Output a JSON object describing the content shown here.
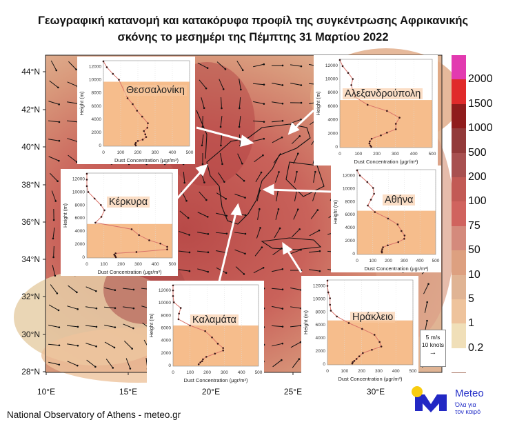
{
  "title": {
    "line1": "Γεωγραφική κατανομή και κατακόρυφα προφίλ της συγκέντρωσης Αφρικανικής",
    "line2": "σκόνης το μεσημέρι της Πέμπτης 31 Μαρτίου 2022"
  },
  "map": {
    "lat_ticks": [
      "44°N",
      "42°N",
      "40°N",
      "38°N",
      "36°N",
      "34°N",
      "32°N",
      "30°N",
      "28°N"
    ],
    "lon_ticks": [
      "10°E",
      "15°E",
      "20°E",
      "25°E",
      "30°E"
    ],
    "wind_legend": {
      "speed": "5 m/s",
      "knots": "10 knots"
    }
  },
  "colorbar": {
    "colors": [
      "#e23ab0",
      "#e02a2a",
      "#8f1c1c",
      "#933a3a",
      "#a85050",
      "#c25a55",
      "#d0635e",
      "#d48a7c",
      "#dda080",
      "#e0b494",
      "#eec39c",
      "#f0dfb8",
      "#ffffff"
    ],
    "labels": [
      "2000",
      "1500",
      "1000",
      "500",
      "200",
      "100",
      "75",
      "50",
      "10",
      "5",
      "1",
      "0.2"
    ]
  },
  "profiles_axes": {
    "xlabel": "Dust Concentration (μgr/m³)",
    "ylabel": "Height (m)",
    "xticks": [
      "0",
      "100",
      "200",
      "300",
      "400",
      "500"
    ],
    "yticks": [
      "0",
      "2000",
      "4000",
      "6000",
      "8000",
      "10000",
      "12000"
    ],
    "xlim": [
      0,
      500
    ],
    "ylim": [
      0,
      13000
    ]
  },
  "profiles": [
    {
      "city": "Θεσσαλονίκη",
      "shade_top": 9800,
      "points": [
        [
          0,
          12900
        ],
        [
          20,
          12000
        ],
        [
          55,
          11000
        ],
        [
          90,
          10100
        ],
        [
          140,
          7300
        ],
        [
          170,
          6400
        ],
        [
          195,
          5400
        ],
        [
          225,
          4500
        ],
        [
          258,
          3500
        ],
        [
          255,
          2800
        ],
        [
          235,
          2300
        ],
        [
          243,
          1800
        ],
        [
          248,
          1400
        ],
        [
          228,
          1000
        ],
        [
          200,
          800
        ],
        [
          188,
          500
        ],
        [
          185,
          300
        ],
        [
          188,
          100
        ]
      ]
    },
    {
      "city": "Αλεξανδρούπολη",
      "shade_top": 7000,
      "points": [
        [
          0,
          12900
        ],
        [
          15,
          12000
        ],
        [
          45,
          11000
        ],
        [
          70,
          10100
        ],
        [
          62,
          9200
        ],
        [
          80,
          7500
        ],
        [
          150,
          6300
        ],
        [
          255,
          5400
        ],
        [
          323,
          4400
        ],
        [
          303,
          3500
        ],
        [
          303,
          2700
        ],
        [
          255,
          2200
        ],
        [
          222,
          1800
        ],
        [
          172,
          1300
        ],
        [
          162,
          900
        ],
        [
          160,
          600
        ],
        [
          165,
          300
        ],
        [
          170,
          100
        ]
      ]
    },
    {
      "city": "Κέρκυρα",
      "shade_top": 5200,
      "points": [
        [
          0,
          12900
        ],
        [
          0,
          12000
        ],
        [
          0,
          11000
        ],
        [
          8,
          10100
        ],
        [
          45,
          9100
        ],
        [
          82,
          8100
        ],
        [
          103,
          7300
        ],
        [
          85,
          6300
        ],
        [
          50,
          5400
        ],
        [
          262,
          4400
        ],
        [
          305,
          3500
        ],
        [
          365,
          2700
        ],
        [
          430,
          2200
        ],
        [
          470,
          1700
        ],
        [
          470,
          1300
        ],
        [
          290,
          900
        ],
        [
          168,
          700
        ],
        [
          160,
          500
        ],
        [
          165,
          300
        ],
        [
          170,
          100
        ]
      ]
    },
    {
      "city": "Αθήνα",
      "shade_top": 6700,
      "points": [
        [
          0,
          12900
        ],
        [
          18,
          12100
        ],
        [
          65,
          11100
        ],
        [
          102,
          10200
        ],
        [
          108,
          9300
        ],
        [
          88,
          8400
        ],
        [
          68,
          7500
        ],
        [
          113,
          6500
        ],
        [
          197,
          5500
        ],
        [
          258,
          4600
        ],
        [
          282,
          3600
        ],
        [
          302,
          2900
        ],
        [
          300,
          2400
        ],
        [
          262,
          1900
        ],
        [
          195,
          1400
        ],
        [
          165,
          1100
        ],
        [
          160,
          800
        ],
        [
          157,
          500
        ],
        [
          158,
          300
        ]
      ]
    },
    {
      "city": "Καλαμάτα",
      "shade_top": 6500,
      "points": [
        [
          0,
          12900
        ],
        [
          0,
          12100
        ],
        [
          0,
          11200
        ],
        [
          5,
          10200
        ],
        [
          45,
          9300
        ],
        [
          35,
          8400
        ],
        [
          32,
          7500
        ],
        [
          100,
          6500
        ],
        [
          188,
          5600
        ],
        [
          228,
          4600
        ],
        [
          262,
          3600
        ],
        [
          293,
          2900
        ],
        [
          293,
          2500
        ],
        [
          245,
          2000
        ],
        [
          195,
          1500
        ],
        [
          175,
          1100
        ],
        [
          170,
          800
        ],
        [
          160,
          600
        ],
        [
          150,
          300
        ]
      ]
    },
    {
      "city": "Ηράκλειο",
      "shade_top": 6800,
      "points": [
        [
          0,
          12900
        ],
        [
          0,
          12100
        ],
        [
          5,
          11100
        ],
        [
          15,
          10200
        ],
        [
          15,
          9200
        ],
        [
          20,
          8300
        ],
        [
          55,
          7400
        ],
        [
          125,
          6400
        ],
        [
          203,
          5500
        ],
        [
          275,
          4600
        ],
        [
          305,
          3500
        ],
        [
          315,
          2800
        ],
        [
          260,
          2300
        ],
        [
          207,
          1800
        ],
        [
          186,
          1300
        ],
        [
          170,
          900
        ],
        [
          157,
          600
        ],
        [
          148,
          400
        ],
        [
          145,
          200
        ]
      ]
    }
  ],
  "footer": "National Observatory of Athens - meteo.gr",
  "logo": {
    "name": "Meteo",
    "tagline1": "Όλα για",
    "tagline2": "τον καιρό"
  }
}
